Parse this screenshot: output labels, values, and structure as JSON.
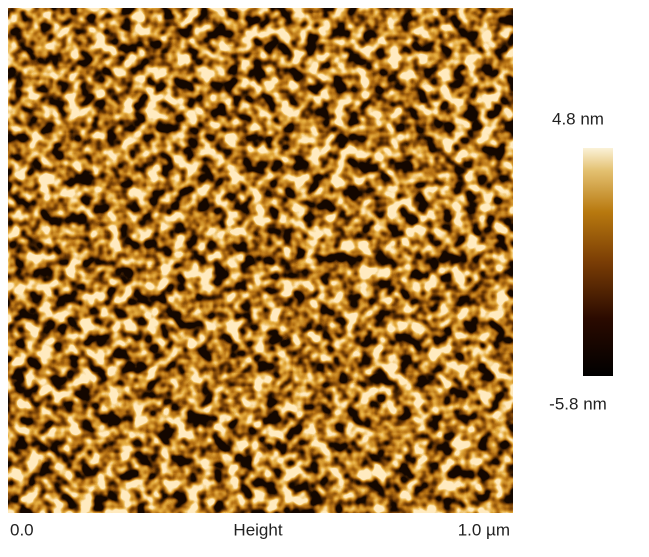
{
  "colorbar": {
    "max_label": "4.8 nm",
    "min_label": "-5.8 nm"
  },
  "footer": {
    "start": "0.0",
    "channel": "Height",
    "end": "1.0 µm"
  }
}
